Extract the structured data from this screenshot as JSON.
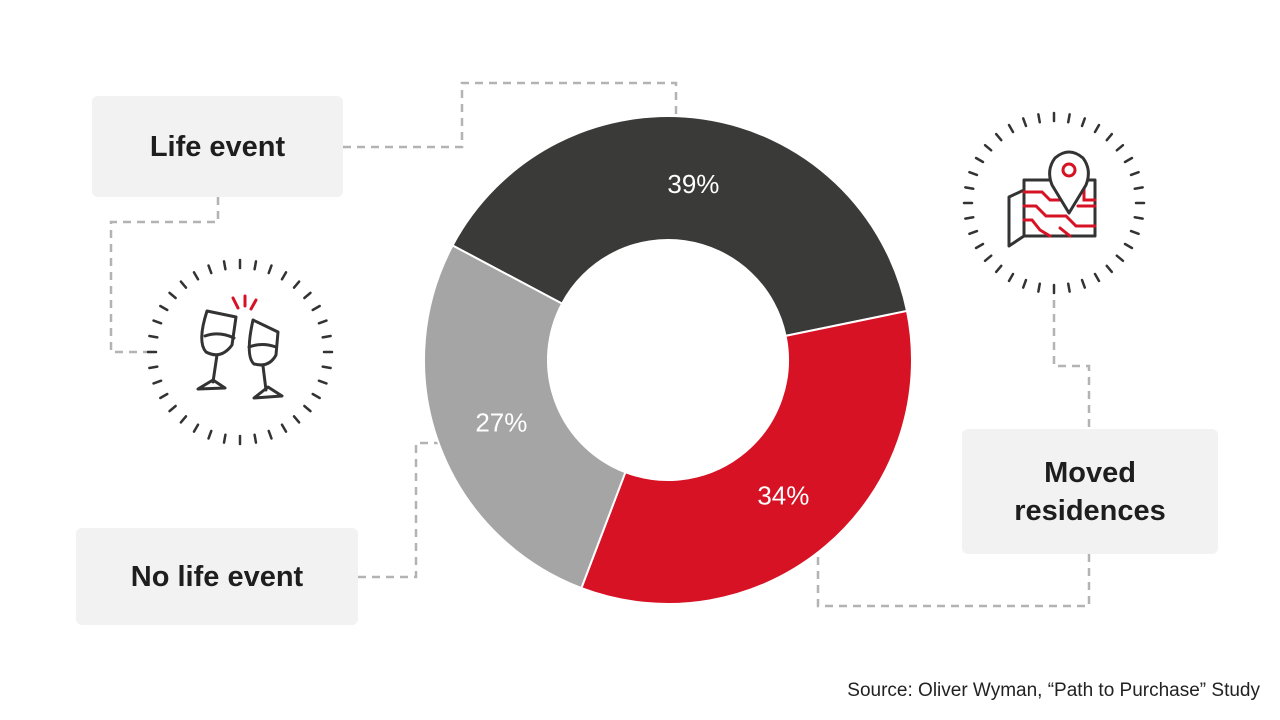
{
  "chart_data": {
    "type": "pie",
    "style": "donut",
    "series": [
      {
        "name": "Life event",
        "value": 39,
        "label": "39%",
        "color": "#3a3b39"
      },
      {
        "name": "Moved residences",
        "value": 34,
        "label": "34%",
        "color": "#d71224"
      },
      {
        "name": "No life event",
        "value": 27,
        "label": "27%",
        "color": "#a5a5a5"
      }
    ]
  },
  "callouts": {
    "life_event": "Life event",
    "no_life_event": "No life event",
    "moved_residences": "Moved residences"
  },
  "icons": {
    "celebration": "champagne-glasses-icon",
    "moving": "map-pin-icon"
  },
  "source": "Source: Oliver Wyman, “Path to Purchase” Study",
  "colors": {
    "accent": "#d71224",
    "dark": "#3a3b39",
    "grey": "#a5a5a5",
    "box": "#f2f2f2"
  }
}
